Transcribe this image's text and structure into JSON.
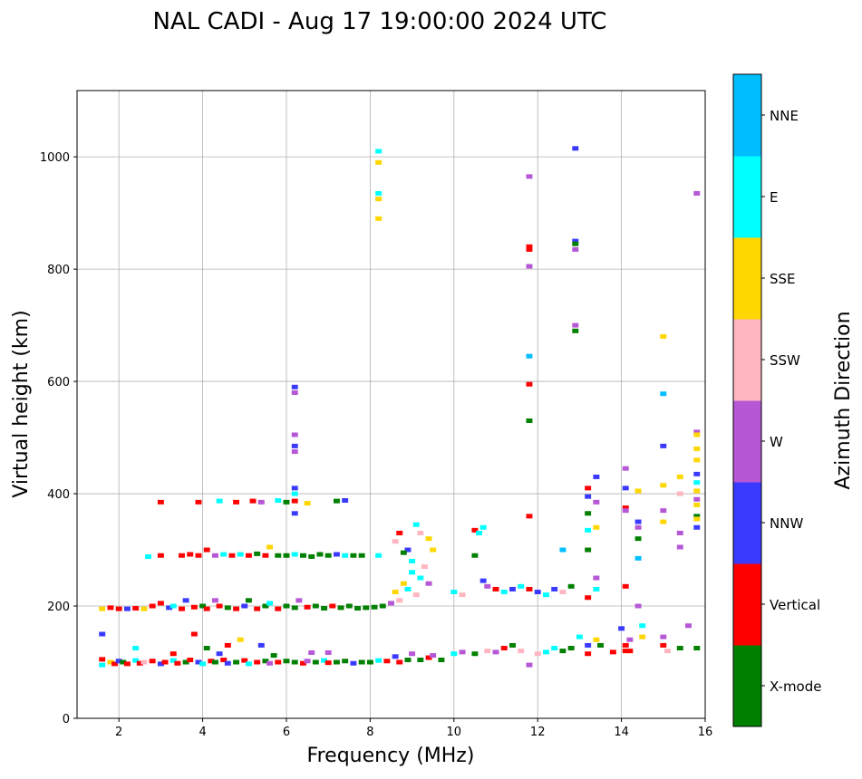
{
  "chart_data": {
    "type": "scatter",
    "title": "NAL CADI - Aug 17 19:00:00 2024 UTC",
    "xlabel": "Frequency (MHz)",
    "ylabel": "Virtual height (km)",
    "xlim": [
      1,
      16
    ],
    "ylim": [
      0,
      1118
    ],
    "xticks": [
      2,
      4,
      6,
      8,
      10,
      12,
      14,
      16
    ],
    "yticks": [
      0,
      200,
      400,
      600,
      800,
      1000
    ],
    "grid": true,
    "colorbar": {
      "label": "Azimuth Direction",
      "categories": [
        "X-mode",
        "Vertical",
        "NNW",
        "W",
        "SSW",
        "SSE",
        "E",
        "NNE"
      ],
      "colors": [
        "#008000",
        "#ff0000",
        "#3a3aff",
        "#b657d6",
        "#ffb6c1",
        "#ffd700",
        "#00ffff",
        "#00bfff"
      ]
    },
    "point_format": [
      "frequency_mhz",
      "height_km",
      "category_index"
    ],
    "points": [
      [
        1.6,
        95,
        6
      ],
      [
        1.6,
        105,
        1
      ],
      [
        1.6,
        150,
        2
      ],
      [
        1.8,
        100,
        5
      ],
      [
        1.9,
        97,
        1
      ],
      [
        2.0,
        102,
        2
      ],
      [
        2.1,
        100,
        0
      ],
      [
        2.2,
        97,
        1
      ],
      [
        2.4,
        103,
        6
      ],
      [
        2.5,
        98,
        1
      ],
      [
        2.6,
        100,
        4
      ],
      [
        2.8,
        102,
        1
      ],
      [
        3.0,
        97,
        2
      ],
      [
        3.1,
        100,
        1
      ],
      [
        3.3,
        103,
        6
      ],
      [
        3.4,
        98,
        1
      ],
      [
        3.6,
        100,
        0
      ],
      [
        3.7,
        104,
        1
      ],
      [
        3.9,
        100,
        2
      ],
      [
        4.0,
        97,
        6
      ],
      [
        4.2,
        102,
        1
      ],
      [
        4.3,
        100,
        0
      ],
      [
        4.5,
        104,
        1
      ],
      [
        4.6,
        98,
        2
      ],
      [
        4.8,
        100,
        0
      ],
      [
        5.0,
        103,
        1
      ],
      [
        5.1,
        97,
        6
      ],
      [
        5.3,
        100,
        1
      ],
      [
        5.5,
        102,
        0
      ],
      [
        5.6,
        98,
        3
      ],
      [
        5.8,
        100,
        1
      ],
      [
        6.0,
        102,
        0
      ],
      [
        6.2,
        100,
        0
      ],
      [
        6.4,
        98,
        1
      ],
      [
        6.5,
        102,
        3
      ],
      [
        6.7,
        100,
        0
      ],
      [
        6.9,
        103,
        6
      ],
      [
        7.0,
        99,
        1
      ],
      [
        7.2,
        100,
        0
      ],
      [
        7.4,
        102,
        0
      ],
      [
        7.6,
        98,
        2
      ],
      [
        7.8,
        100,
        0
      ],
      [
        8.0,
        100,
        0
      ],
      [
        8.2,
        103,
        6
      ],
      [
        8.4,
        102,
        1
      ],
      [
        8.6,
        110,
        2
      ],
      [
        8.7,
        100,
        1
      ],
      [
        8.9,
        104,
        0
      ],
      [
        9.0,
        115,
        3
      ],
      [
        9.2,
        104,
        0
      ],
      [
        9.4,
        108,
        1
      ],
      [
        9.5,
        112,
        3
      ],
      [
        9.7,
        104,
        0
      ],
      [
        2.4,
        125,
        6
      ],
      [
        3.3,
        115,
        1
      ],
      [
        3.8,
        150,
        1
      ],
      [
        4.1,
        125,
        0
      ],
      [
        4.4,
        115,
        2
      ],
      [
        4.6,
        130,
        1
      ],
      [
        4.9,
        140,
        5
      ],
      [
        5.4,
        130,
        2
      ],
      [
        5.7,
        112,
        0
      ],
      [
        6.6,
        117,
        3
      ],
      [
        7.0,
        117,
        3
      ],
      [
        10.0,
        115,
        6
      ],
      [
        10.2,
        118,
        3
      ],
      [
        10.5,
        115,
        0
      ],
      [
        10.8,
        120,
        4
      ],
      [
        11.0,
        118,
        3
      ],
      [
        11.2,
        125,
        1
      ],
      [
        11.4,
        130,
        0
      ],
      [
        11.6,
        120,
        4
      ],
      [
        11.8,
        95,
        3
      ],
      [
        12.0,
        115,
        4
      ],
      [
        12.2,
        118,
        6
      ],
      [
        12.4,
        125,
        6
      ],
      [
        12.6,
        120,
        0
      ],
      [
        12.8,
        125,
        0
      ],
      [
        13.0,
        145,
        6
      ],
      [
        13.2,
        130,
        2
      ],
      [
        13.2,
        115,
        1
      ],
      [
        13.4,
        140,
        5
      ],
      [
        13.5,
        130,
        0
      ],
      [
        13.8,
        118,
        1
      ],
      [
        14.0,
        160,
        2
      ],
      [
        14.2,
        120,
        1
      ],
      [
        14.2,
        140,
        3
      ],
      [
        14.5,
        165,
        6
      ],
      [
        14.5,
        145,
        5
      ],
      [
        15.0,
        130,
        1
      ],
      [
        15.0,
        145,
        3
      ],
      [
        15.1,
        120,
        4
      ],
      [
        15.4,
        125,
        0
      ],
      [
        15.8,
        125,
        0
      ],
      [
        15.6,
        165,
        3
      ],
      [
        14.1,
        130,
        1
      ],
      [
        14.1,
        120,
        1
      ],
      [
        1.6,
        195,
        5
      ],
      [
        1.8,
        197,
        1
      ],
      [
        2.0,
        195,
        1
      ],
      [
        2.2,
        195,
        2
      ],
      [
        2.4,
        196,
        1
      ],
      [
        2.6,
        195,
        5
      ],
      [
        2.8,
        200,
        1
      ],
      [
        3.0,
        205,
        1
      ],
      [
        3.2,
        197,
        2
      ],
      [
        3.3,
        200,
        6
      ],
      [
        3.5,
        195,
        1
      ],
      [
        3.6,
        210,
        2
      ],
      [
        3.8,
        198,
        1
      ],
      [
        4.0,
        200,
        0
      ],
      [
        4.1,
        195,
        1
      ],
      [
        4.3,
        210,
        3
      ],
      [
        4.4,
        200,
        1
      ],
      [
        4.6,
        197,
        0
      ],
      [
        4.8,
        195,
        1
      ],
      [
        5.0,
        200,
        2
      ],
      [
        5.1,
        210,
        0
      ],
      [
        5.3,
        195,
        1
      ],
      [
        5.5,
        200,
        0
      ],
      [
        5.6,
        205,
        6
      ],
      [
        5.8,
        195,
        1
      ],
      [
        6.0,
        200,
        0
      ],
      [
        6.2,
        197,
        0
      ],
      [
        6.3,
        210,
        3
      ],
      [
        6.5,
        198,
        1
      ],
      [
        6.7,
        200,
        0
      ],
      [
        6.9,
        196,
        0
      ],
      [
        7.1,
        200,
        1
      ],
      [
        7.3,
        197,
        0
      ],
      [
        7.5,
        200,
        0
      ],
      [
        7.7,
        196,
        0
      ],
      [
        7.9,
        197,
        0
      ],
      [
        8.1,
        198,
        0
      ],
      [
        8.3,
        200,
        0
      ],
      [
        8.5,
        205,
        3
      ],
      [
        8.6,
        225,
        5
      ],
      [
        8.7,
        210,
        4
      ],
      [
        8.8,
        240,
        5
      ],
      [
        8.9,
        230,
        6
      ],
      [
        9.0,
        260,
        6
      ],
      [
        9.1,
        220,
        4
      ],
      [
        9.2,
        250,
        6
      ],
      [
        9.3,
        270,
        4
      ],
      [
        9.4,
        240,
        3
      ],
      [
        9.5,
        300,
        5
      ],
      [
        8.7,
        330,
        1
      ],
      [
        8.6,
        315,
        4
      ],
      [
        8.9,
        300,
        2
      ],
      [
        9.1,
        345,
        6
      ],
      [
        9.2,
        330,
        4
      ],
      [
        9.4,
        320,
        5
      ],
      [
        9.0,
        280,
        6
      ],
      [
        8.8,
        295,
        0
      ],
      [
        3.5,
        290,
        1
      ],
      [
        3.7,
        292,
        1
      ],
      [
        3.9,
        290,
        1
      ],
      [
        4.1,
        300,
        1
      ],
      [
        4.3,
        290,
        3
      ],
      [
        4.5,
        292,
        6
      ],
      [
        4.7,
        290,
        1
      ],
      [
        4.9,
        292,
        6
      ],
      [
        5.1,
        290,
        1
      ],
      [
        5.3,
        293,
        0
      ],
      [
        5.5,
        290,
        1
      ],
      [
        5.6,
        305,
        5
      ],
      [
        5.8,
        290,
        0
      ],
      [
        6.0,
        290,
        0
      ],
      [
        6.2,
        292,
        6
      ],
      [
        6.4,
        290,
        0
      ],
      [
        6.6,
        288,
        0
      ],
      [
        6.8,
        292,
        0
      ],
      [
        7.0,
        290,
        0
      ],
      [
        7.2,
        292,
        2
      ],
      [
        7.4,
        290,
        6
      ],
      [
        7.6,
        290,
        0
      ],
      [
        7.8,
        290,
        0
      ],
      [
        8.2,
        290,
        6
      ],
      [
        3.0,
        290,
        1
      ],
      [
        2.7,
        288,
        6
      ],
      [
        3.0,
        385,
        1
      ],
      [
        3.9,
        385,
        1
      ],
      [
        4.4,
        387,
        6
      ],
      [
        4.8,
        385,
        1
      ],
      [
        5.2,
        387,
        1
      ],
      [
        5.4,
        385,
        3
      ],
      [
        5.8,
        388,
        6
      ],
      [
        6.0,
        385,
        0
      ],
      [
        6.2,
        387,
        1
      ],
      [
        6.5,
        383,
        5
      ],
      [
        7.2,
        387,
        0
      ],
      [
        7.4,
        388,
        2
      ],
      [
        6.2,
        365,
        2
      ],
      [
        6.2,
        400,
        6
      ],
      [
        6.2,
        410,
        2
      ],
      [
        6.2,
        475,
        3
      ],
      [
        6.2,
        485,
        2
      ],
      [
        6.2,
        505,
        3
      ],
      [
        6.2,
        580,
        3
      ],
      [
        6.2,
        590,
        2
      ],
      [
        8.2,
        1010,
        6
      ],
      [
        8.2,
        990,
        5
      ],
      [
        8.2,
        935,
        6
      ],
      [
        8.2,
        925,
        5
      ],
      [
        8.2,
        890,
        5
      ],
      [
        10.0,
        225,
        6
      ],
      [
        10.2,
        220,
        4
      ],
      [
        10.5,
        335,
        1
      ],
      [
        10.6,
        330,
        6
      ],
      [
        10.7,
        340,
        6
      ],
      [
        10.5,
        290,
        0
      ],
      [
        10.7,
        245,
        2
      ],
      [
        10.8,
        235,
        3
      ],
      [
        11.0,
        230,
        1
      ],
      [
        11.2,
        225,
        6
      ],
      [
        11.4,
        230,
        2
      ],
      [
        11.6,
        235,
        6
      ],
      [
        11.8,
        230,
        1
      ],
      [
        12.0,
        225,
        2
      ],
      [
        12.2,
        220,
        6
      ],
      [
        12.4,
        230,
        2
      ],
      [
        12.6,
        225,
        4
      ],
      [
        12.8,
        235,
        0
      ],
      [
        12.6,
        300,
        7
      ],
      [
        13.2,
        300,
        0
      ],
      [
        13.2,
        335,
        6
      ],
      [
        13.2,
        365,
        0
      ],
      [
        13.2,
        395,
        2
      ],
      [
        13.2,
        410,
        1
      ],
      [
        13.4,
        385,
        3
      ],
      [
        13.4,
        430,
        2
      ],
      [
        13.4,
        340,
        5
      ],
      [
        13.4,
        250,
        3
      ],
      [
        13.2,
        215,
        1
      ],
      [
        13.4,
        230,
        6
      ],
      [
        11.8,
        360,
        1
      ],
      [
        11.8,
        530,
        0
      ],
      [
        11.8,
        595,
        1
      ],
      [
        11.8,
        645,
        7
      ],
      [
        11.8,
        805,
        3
      ],
      [
        11.8,
        835,
        1
      ],
      [
        11.8,
        840,
        1
      ],
      [
        11.8,
        965,
        3
      ],
      [
        12.9,
        1015,
        2
      ],
      [
        12.9,
        850,
        2
      ],
      [
        12.9,
        845,
        0
      ],
      [
        12.9,
        835,
        3
      ],
      [
        12.9,
        700,
        3
      ],
      [
        12.9,
        690,
        0
      ],
      [
        14.1,
        410,
        2
      ],
      [
        14.1,
        445,
        3
      ],
      [
        14.1,
        375,
        1
      ],
      [
        14.1,
        370,
        3
      ],
      [
        14.1,
        235,
        1
      ],
      [
        14.4,
        405,
        5
      ],
      [
        14.4,
        350,
        2
      ],
      [
        14.4,
        340,
        3
      ],
      [
        14.4,
        320,
        0
      ],
      [
        14.4,
        285,
        7
      ],
      [
        14.4,
        200,
        3
      ],
      [
        15.0,
        680,
        5
      ],
      [
        15.0,
        578,
        7
      ],
      [
        15.0,
        485,
        2
      ],
      [
        15.0,
        415,
        5
      ],
      [
        15.0,
        370,
        3
      ],
      [
        15.0,
        350,
        5
      ],
      [
        15.4,
        430,
        5
      ],
      [
        15.4,
        400,
        4
      ],
      [
        15.4,
        330,
        3
      ],
      [
        15.4,
        305,
        3
      ],
      [
        15.8,
        935,
        3
      ],
      [
        15.8,
        510,
        3
      ],
      [
        15.8,
        505,
        5
      ],
      [
        15.8,
        480,
        5
      ],
      [
        15.8,
        460,
        5
      ],
      [
        15.8,
        435,
        2
      ],
      [
        15.8,
        420,
        6
      ],
      [
        15.8,
        405,
        5
      ],
      [
        15.8,
        390,
        3
      ],
      [
        15.8,
        380,
        5
      ],
      [
        15.8,
        360,
        0
      ],
      [
        15.8,
        340,
        2
      ],
      [
        15.8,
        355,
        5
      ]
    ]
  }
}
